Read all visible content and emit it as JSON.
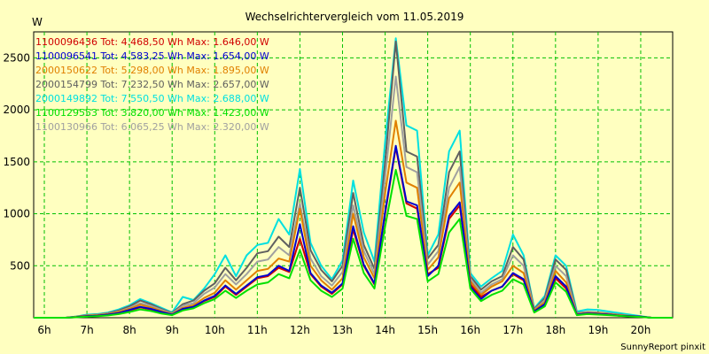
{
  "colors": {
    "background": "#ffffc0",
    "grid": "#00c000"
  },
  "footer": "SunnyReport pinxit",
  "chart_data": {
    "type": "line",
    "title": "Wechselrichtervergleich vom 11.05.2019",
    "ylabel": "W",
    "xlabel": "",
    "xlim": [
      5.75,
      20.75
    ],
    "ylim": [
      0,
      2750
    ],
    "grid": true,
    "legend_position": "top-left",
    "x_ticks": [
      {
        "value": 6,
        "label": "6h"
      },
      {
        "value": 7,
        "label": "7h"
      },
      {
        "value": 8,
        "label": "8h"
      },
      {
        "value": 9,
        "label": "9h"
      },
      {
        "value": 10,
        "label": "10h"
      },
      {
        "value": 11,
        "label": "11h"
      },
      {
        "value": 12,
        "label": "12h"
      },
      {
        "value": 13,
        "label": "13h"
      },
      {
        "value": 14,
        "label": "14h"
      },
      {
        "value": 15,
        "label": "15h"
      },
      {
        "value": 16,
        "label": "16h"
      },
      {
        "value": 17,
        "label": "17h"
      },
      {
        "value": 18,
        "label": "18h"
      },
      {
        "value": 19,
        "label": "19h"
      },
      {
        "value": 20,
        "label": "20h"
      }
    ],
    "y_ticks": [
      {
        "value": 500,
        "label": "500"
      },
      {
        "value": 1000,
        "label": "1000"
      },
      {
        "value": 1500,
        "label": "1500"
      },
      {
        "value": 2000,
        "label": "2000"
      },
      {
        "value": 2500,
        "label": "2500"
      }
    ],
    "x": [
      5.75,
      6.0,
      6.25,
      6.5,
      6.75,
      7.0,
      7.25,
      7.5,
      7.75,
      8.0,
      8.25,
      8.5,
      8.75,
      9.0,
      9.25,
      9.5,
      9.75,
      10.0,
      10.25,
      10.5,
      10.75,
      11.0,
      11.25,
      11.5,
      11.75,
      12.0,
      12.25,
      12.5,
      12.75,
      13.0,
      13.25,
      13.5,
      13.75,
      14.0,
      14.25,
      14.5,
      14.75,
      15.0,
      15.25,
      15.5,
      15.75,
      16.0,
      16.25,
      16.5,
      16.75,
      17.0,
      17.25,
      17.5,
      17.75,
      18.0,
      18.25,
      18.5,
      18.75,
      19.0,
      19.25,
      19.5,
      19.75,
      20.0,
      20.25,
      20.5,
      20.75
    ],
    "series": [
      {
        "name": "1100096436",
        "legend": "1100096436 Tot: 4.468,50 Wh Max: 1.646,00 W",
        "color": "#d00000",
        "values": [
          0,
          0,
          0,
          0,
          5,
          15,
          20,
          30,
          45,
          70,
          100,
          80,
          50,
          30,
          80,
          100,
          160,
          200,
          300,
          220,
          300,
          380,
          400,
          480,
          440,
          760,
          420,
          300,
          230,
          320,
          850,
          500,
          320,
          1000,
          1640,
          1100,
          1050,
          420,
          480,
          950,
          1080,
          320,
          200,
          260,
          300,
          420,
          360,
          60,
          130,
          380,
          280,
          30,
          40,
          35,
          30,
          20,
          15,
          10,
          0,
          0,
          0
        ]
      },
      {
        "name": "1100096541",
        "legend": "1100096541 Tot: 4.583,25 Wh Max: 1.654,00 W",
        "color": "#0000d0",
        "values": [
          0,
          0,
          0,
          0,
          5,
          15,
          20,
          30,
          45,
          75,
          105,
          85,
          55,
          30,
          85,
          105,
          165,
          210,
          310,
          230,
          310,
          390,
          410,
          500,
          450,
          900,
          430,
          310,
          240,
          330,
          880,
          510,
          330,
          1020,
          1654,
          1120,
          1080,
          400,
          500,
          980,
          1110,
          300,
          180,
          260,
          300,
          430,
          370,
          60,
          130,
          400,
          300,
          30,
          40,
          35,
          30,
          20,
          15,
          10,
          0,
          0,
          0
        ]
      },
      {
        "name": "2000150622",
        "legend": "2000150622 Tot: 5.298,00 Wh Max: 1.895,00 W",
        "color": "#e08000",
        "values": [
          0,
          0,
          0,
          0,
          8,
          20,
          25,
          35,
          55,
          85,
          125,
          100,
          65,
          35,
          95,
          120,
          190,
          240,
          360,
          270,
          360,
          450,
          470,
          570,
          540,
          1050,
          500,
          360,
          270,
          380,
          1000,
          580,
          380,
          1200,
          1895,
          1300,
          1250,
          460,
          580,
          1150,
          1300,
          350,
          220,
          300,
          350,
          500,
          430,
          70,
          150,
          450,
          340,
          35,
          45,
          40,
          35,
          25,
          15,
          10,
          0,
          0,
          0
        ]
      },
      {
        "name": "2000154799",
        "legend": "2000154799 Tot: 7.232,50 Wh Max: 2.657,00 W",
        "color": "#606060",
        "values": [
          0,
          0,
          0,
          0,
          10,
          25,
          30,
          45,
          70,
          110,
          165,
          130,
          85,
          45,
          130,
          165,
          260,
          330,
          480,
          360,
          480,
          620,
          640,
          780,
          680,
          1250,
          650,
          460,
          350,
          500,
          1200,
          700,
          470,
          1500,
          2657,
          1600,
          1550,
          570,
          700,
          1400,
          1600,
          400,
          270,
          350,
          400,
          680,
          560,
          80,
          190,
          560,
          460,
          45,
          55,
          50,
          40,
          30,
          20,
          10,
          0,
          0,
          0
        ]
      },
      {
        "name": "2000149892",
        "legend": "2000149892 Tot: 7.550,50 Wh Max: 2.688,00 W",
        "color": "#00e0e0",
        "values": [
          0,
          0,
          0,
          0,
          12,
          30,
          35,
          50,
          80,
          120,
          180,
          140,
          95,
          50,
          200,
          170,
          280,
          420,
          600,
          400,
          600,
          700,
          720,
          950,
          800,
          1430,
          720,
          500,
          370,
          550,
          1320,
          820,
          540,
          1700,
          2688,
          1850,
          1800,
          600,
          800,
          1600,
          1800,
          430,
          300,
          380,
          450,
          800,
          600,
          90,
          210,
          600,
          500,
          60,
          80,
          75,
          60,
          45,
          30,
          15,
          0,
          0,
          0
        ]
      },
      {
        "name": "1100129553",
        "legend": "1100129553 Tot: 3.820,00 Wh Max: 1.423,00 W",
        "color": "#00e000",
        "values": [
          0,
          0,
          0,
          0,
          4,
          10,
          15,
          22,
          35,
          55,
          80,
          65,
          40,
          25,
          70,
          90,
          140,
          180,
          260,
          190,
          260,
          320,
          340,
          420,
          380,
          650,
          360,
          260,
          200,
          280,
          760,
          430,
          280,
          880,
          1423,
          980,
          950,
          350,
          420,
          820,
          950,
          280,
          160,
          220,
          260,
          370,
          320,
          50,
          110,
          340,
          250,
          25,
          35,
          30,
          25,
          18,
          12,
          8,
          0,
          0,
          0
        ]
      },
      {
        "name": "1100130966",
        "legend": "1100130966 Tot: 6.065,25 Wh Max: 2.320,00 W",
        "color": "#a0a0a0",
        "values": [
          0,
          0,
          0,
          0,
          8,
          22,
          28,
          40,
          60,
          95,
          140,
          115,
          75,
          40,
          115,
          140,
          230,
          290,
          420,
          320,
          420,
          540,
          560,
          680,
          600,
          1100,
          570,
          400,
          310,
          440,
          1080,
          640,
          420,
          1350,
          2320,
          1450,
          1400,
          510,
          640,
          1250,
          1450,
          370,
          240,
          320,
          370,
          600,
          500,
          75,
          170,
          500,
          400,
          40,
          50,
          45,
          38,
          28,
          18,
          10,
          0,
          0,
          0
        ]
      }
    ]
  }
}
